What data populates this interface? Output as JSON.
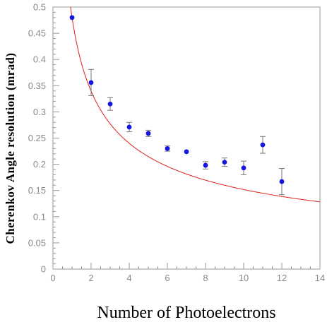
{
  "chart_data": {
    "type": "scatter",
    "title": "",
    "xlabel": "Number of Photoelectrons",
    "ylabel": "Cherenkov  Angle resolution (mrad)",
    "xlim": [
      0,
      14
    ],
    "ylim": [
      0,
      0.5
    ],
    "x_ticks": [
      "0",
      "2",
      "4",
      "6",
      "8",
      "10",
      "12",
      "14"
    ],
    "y_ticks": [
      "0",
      "0.05",
      "0.1",
      "0.15",
      "0.2",
      "0.25",
      "0.3",
      "0.35",
      "0.4",
      "0.45",
      "0.5"
    ],
    "grid": false,
    "series": [
      {
        "kind": "points_with_error_bars",
        "color": "#1515e0",
        "points": [
          {
            "x": 1,
            "y": 0.48,
            "err": 0.0
          },
          {
            "x": 2,
            "y": 0.356,
            "err": 0.025
          },
          {
            "x": 3,
            "y": 0.315,
            "err": 0.012
          },
          {
            "x": 4,
            "y": 0.271,
            "err": 0.009
          },
          {
            "x": 5,
            "y": 0.259,
            "err": 0.006
          },
          {
            "x": 6,
            "y": 0.23,
            "err": 0.005
          },
          {
            "x": 7,
            "y": 0.224,
            "err": 0.0
          },
          {
            "x": 8,
            "y": 0.198,
            "err": 0.007
          },
          {
            "x": 9,
            "y": 0.204,
            "err": 0.008
          },
          {
            "x": 10,
            "y": 0.193,
            "err": 0.013
          },
          {
            "x": 11,
            "y": 0.237,
            "err": 0.016
          },
          {
            "x": 12,
            "y": 0.167,
            "err": 0.025
          }
        ]
      },
      {
        "kind": "curve",
        "function": "y = 0.48 / sqrt(x)",
        "color": "#e02020",
        "x_range": [
          0.92,
          14
        ]
      }
    ]
  }
}
